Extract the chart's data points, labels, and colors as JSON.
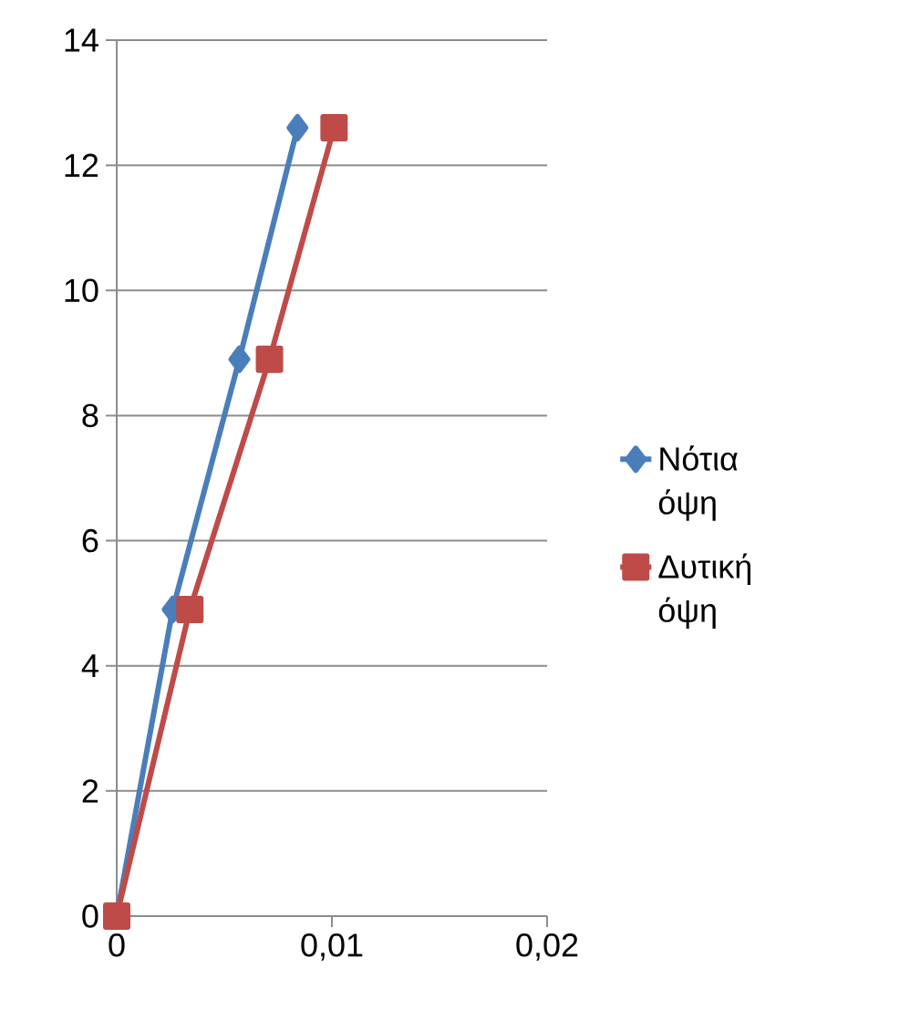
{
  "chart_data": {
    "type": "line",
    "series": [
      {
        "name": "Νότια όψη",
        "color": "#4a7ebb",
        "marker": "diamond",
        "x": [
          0,
          0.0026,
          0.0057,
          0.0084
        ],
        "values": [
          0,
          4.9,
          8.9,
          12.6
        ]
      },
      {
        "name": "Δυτική όψη",
        "color": "#be4b48",
        "marker": "square",
        "x": [
          0,
          0.0034,
          0.0071,
          0.0101
        ],
        "values": [
          0,
          4.9,
          8.9,
          12.6
        ]
      }
    ],
    "xlim": [
      0,
      0.02
    ],
    "xticks": [
      0,
      {
        "value": 0.01,
        "label": "0,01"
      },
      {
        "value": 0.02,
        "label": "0,02"
      }
    ],
    "ylim": [
      0,
      14
    ],
    "yticks": [
      0,
      2,
      4,
      6,
      8,
      10,
      12,
      14
    ],
    "grid": "y",
    "legend": "right",
    "line_style": "solid"
  }
}
